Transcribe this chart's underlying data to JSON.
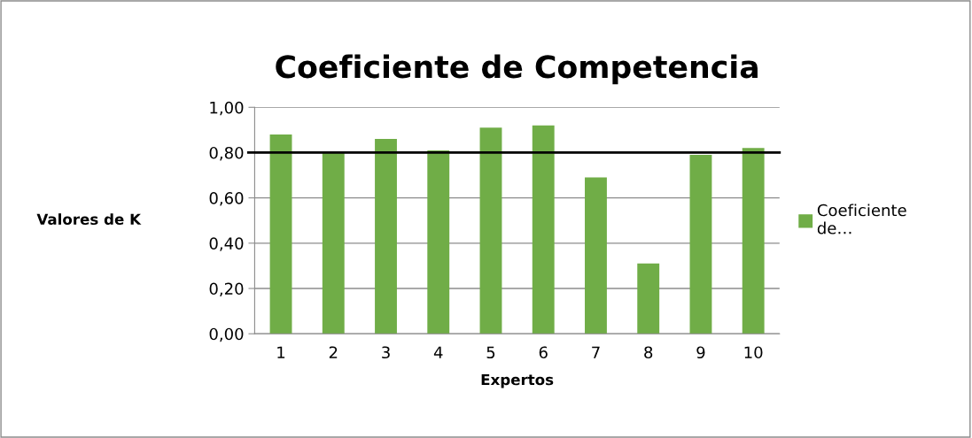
{
  "chart_data": {
    "type": "bar",
    "title": "Coeficiente de Competencia",
    "xlabel": "Expertos",
    "ylabel": "Valores de K",
    "categories": [
      "1",
      "2",
      "3",
      "4",
      "5",
      "6",
      "7",
      "8",
      "9",
      "10"
    ],
    "series": [
      {
        "name": "Coeficiente de…",
        "color": "#70ad47",
        "values": [
          0.88,
          0.8,
          0.86,
          0.81,
          0.91,
          0.92,
          0.69,
          0.31,
          0.79,
          0.82
        ]
      }
    ],
    "ylim": [
      0,
      1
    ],
    "yticks": [
      {
        "value": 0,
        "label": "0,00"
      },
      {
        "value": 0.2,
        "label": "0,20"
      },
      {
        "value": 0.4,
        "label": "0,40"
      },
      {
        "value": 0.6,
        "label": "0,60"
      },
      {
        "value": 0.8,
        "label": "0,80"
      },
      {
        "value": 1,
        "label": "1,00"
      }
    ],
    "ref_lines": [
      {
        "axis": "y",
        "value": 0.8,
        "color": "#000000"
      }
    ],
    "grid": "y",
    "legend": "right"
  }
}
